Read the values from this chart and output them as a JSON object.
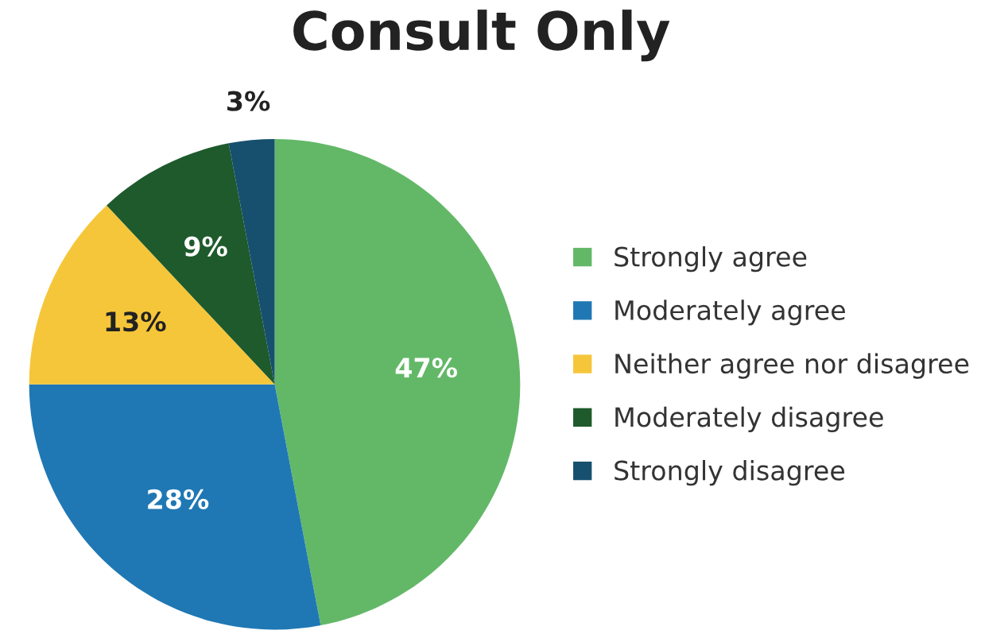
{
  "chart_data": {
    "type": "pie",
    "title": "Consult Only",
    "categories": [
      "Strongly agree",
      "Moderately agree",
      "Neither agree nor disagree",
      "Moderately disagree",
      "Strongly disagree"
    ],
    "values": [
      47,
      28,
      13,
      9,
      3
    ],
    "colors": [
      "#63b868",
      "#1f78b4",
      "#f6c63a",
      "#1e5a2c",
      "#17506e"
    ],
    "value_labels": [
      "47%",
      "28%",
      "13%",
      "9%",
      "3%"
    ],
    "legend": "right"
  }
}
